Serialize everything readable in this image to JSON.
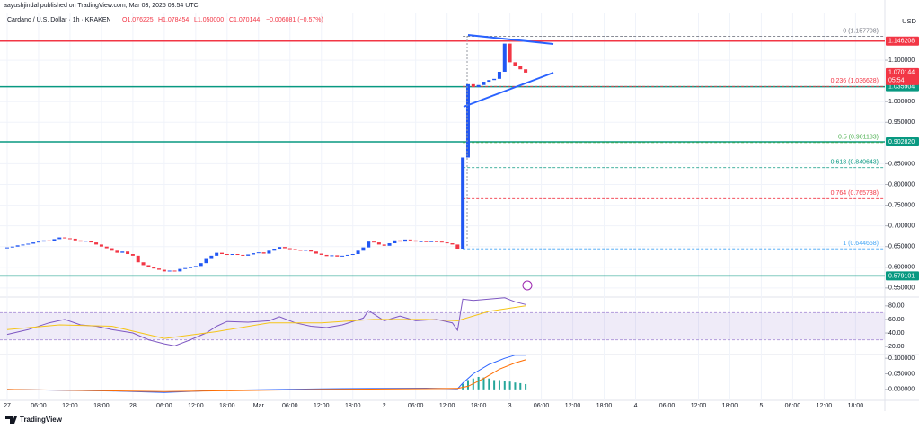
{
  "header": {
    "published": "aayushjindal published on TradingView.com, Mar 03, 2025 03:54 UTC",
    "symbol": "Cardano / U.S. Dollar · 1h · KRAKEN",
    "ohlc": [
      "O1.076225",
      "H1.078454",
      "L1.050000",
      "C1.070144",
      "−0.006081 (−0.57%)"
    ],
    "currency": "USD",
    "brand": "TradingView"
  },
  "chart_data": [
    {
      "type": "candlestick",
      "up_color": "#2157f3",
      "down_color": "#f23645",
      "x": [
        0,
        1,
        2,
        3,
        4,
        5,
        6,
        7,
        8,
        9,
        10,
        11,
        12,
        13,
        14,
        15,
        16,
        17,
        18,
        19,
        20,
        21,
        22,
        23,
        24,
        25,
        26,
        27,
        28,
        29,
        30,
        31,
        32,
        33,
        34,
        35,
        36,
        37,
        38,
        39,
        40,
        41,
        42,
        43,
        44,
        45,
        46,
        47,
        48,
        49,
        50,
        51,
        52,
        53,
        54,
        55,
        56,
        57,
        58,
        59,
        60,
        61,
        62,
        63,
        64,
        65,
        66,
        67,
        68,
        69,
        70,
        71,
        72,
        73,
        74,
        75,
        76,
        77,
        78,
        79,
        80,
        81,
        82,
        83,
        84,
        85,
        86,
        87,
        88,
        89,
        90,
        91,
        92,
        93,
        94,
        95,
        96,
        97,
        98,
        99
      ],
      "close": [
        0.648,
        0.65,
        0.653,
        0.655,
        0.657,
        0.66,
        0.662,
        0.665,
        0.664,
        0.668,
        0.672,
        0.67,
        0.669,
        0.665,
        0.662,
        0.664,
        0.66,
        0.655,
        0.65,
        0.646,
        0.64,
        0.635,
        0.638,
        0.632,
        0.628,
        0.612,
        0.605,
        0.6,
        0.597,
        0.594,
        0.59,
        0.592,
        0.59,
        0.596,
        0.598,
        0.601,
        0.603,
        0.61,
        0.62,
        0.628,
        0.635,
        0.632,
        0.63,
        0.632,
        0.63,
        0.628,
        0.631,
        0.634,
        0.636,
        0.633,
        0.64,
        0.645,
        0.649,
        0.646,
        0.644,
        0.642,
        0.64,
        0.642,
        0.638,
        0.633,
        0.63,
        0.627,
        0.629,
        0.626,
        0.628,
        0.63,
        0.632,
        0.64,
        0.648,
        0.662,
        0.66,
        0.655,
        0.652,
        0.658,
        0.665,
        0.662,
        0.667,
        0.665,
        0.662,
        0.663,
        0.661,
        0.663,
        0.662,
        0.66,
        0.658,
        0.655,
        0.645,
        0.865,
        1.042,
        1.035,
        1.04,
        1.048,
        1.052,
        1.055,
        1.072,
        1.14,
        1.095,
        1.085,
        1.078,
        1.07
      ],
      "xlim": [
        -1.37,
        167.6
      ],
      "ylim": [
        0.528,
        1.202
      ],
      "xticks": [
        {
          "value": 0,
          "label": "27"
        },
        {
          "value": 6,
          "label": "06:00"
        },
        {
          "value": 12,
          "label": "12:00"
        },
        {
          "value": 18,
          "label": "18:00"
        },
        {
          "value": 24,
          "label": "28"
        },
        {
          "value": 30,
          "label": "06:00"
        },
        {
          "value": 36,
          "label": "12:00"
        },
        {
          "value": 42,
          "label": "18:00"
        },
        {
          "value": 48,
          "label": "Mar"
        },
        {
          "value": 54,
          "label": "06:00"
        },
        {
          "value": 60,
          "label": "12:00"
        },
        {
          "value": 66,
          "label": "18:00"
        },
        {
          "value": 72,
          "label": "2"
        },
        {
          "value": 78,
          "label": "06:00"
        },
        {
          "value": 84,
          "label": "12:00"
        },
        {
          "value": 90,
          "label": "18:00"
        },
        {
          "value": 96,
          "label": "3"
        },
        {
          "value": 102,
          "label": "06:00"
        },
        {
          "value": 108,
          "label": "12:00"
        },
        {
          "value": 114,
          "label": "18:00"
        },
        {
          "value": 120,
          "label": "4"
        },
        {
          "value": 126,
          "label": "06:00"
        },
        {
          "value": 132,
          "label": "12:00"
        },
        {
          "value": 138,
          "label": "18:00"
        },
        {
          "value": 144,
          "label": "5"
        },
        {
          "value": 150,
          "label": "06:00"
        },
        {
          "value": 156,
          "label": "12:00"
        },
        {
          "value": 162,
          "label": "18:00"
        }
      ],
      "yticks": [
        {
          "value": 0.55,
          "label": "0.550000"
        },
        {
          "value": 0.6,
          "label": "0.600000"
        },
        {
          "value": 0.65,
          "label": "0.650000"
        },
        {
          "value": 0.7,
          "label": "0.700000"
        },
        {
          "value": 0.75,
          "label": "0.750000"
        },
        {
          "value": 0.8,
          "label": "0.800000"
        },
        {
          "value": 0.85,
          "label": "0.850000"
        },
        {
          "value": 0.95,
          "label": "0.950000"
        },
        {
          "value": 1.0,
          "label": "1.000000"
        },
        {
          "value": 1.1,
          "label": "1.100000"
        }
      ],
      "grid": true,
      "levels": [
        {
          "value": 1.146208,
          "color": "#f23645"
        },
        {
          "value": 1.035904,
          "color": "#089981"
        },
        {
          "value": 0.90282,
          "label": "0.902820",
          "color": "#089981"
        },
        {
          "value": 0.579101,
          "color": "#089981"
        }
      ],
      "last_price": {
        "value": 1.070144,
        "color": "#f23645",
        "countdown": "05:54"
      },
      "fib_start": 87,
      "fib": [
        {
          "label": "0 (1.157708)",
          "value": 1.157708,
          "color": "#787b86"
        },
        {
          "label": "0.236 (1.036628)",
          "value": 1.036628,
          "color": "#f23645"
        },
        {
          "label": "0.5 (0.901183)",
          "value": 0.901183,
          "color": "#4caf50"
        },
        {
          "label": "0.618 (0.840643)",
          "value": 0.840643,
          "color": "#089981"
        },
        {
          "label": "0.764 (0.765738)",
          "value": 0.765738,
          "color": "#f23645"
        },
        {
          "label": "1 (0.644658)",
          "value": 0.644658,
          "color": "#42a5f5"
        }
      ]
    },
    {
      "type": "line",
      "ylim": [
        8.3,
        93
      ],
      "band": [
        30,
        70
      ],
      "yticks": [
        {
          "value": 80,
          "label": "80.00"
        },
        {
          "value": 60,
          "label": "60.00"
        },
        {
          "value": 40,
          "label": "40.00"
        },
        {
          "value": 20,
          "label": "20.00"
        }
      ],
      "series": [
        {
          "color": "#7e57c2",
          "x": [
            0,
            4,
            8,
            11,
            14,
            17,
            20,
            24,
            27,
            30,
            32,
            35,
            38,
            40,
            42,
            46,
            50,
            52,
            55,
            58,
            61,
            64,
            68,
            69,
            72,
            75,
            78,
            82,
            85,
            86,
            87,
            89,
            92,
            95,
            97,
            99
          ],
          "values": [
            38,
            45,
            55,
            60,
            52,
            50,
            45,
            40,
            30,
            24,
            21,
            30,
            40,
            50,
            57,
            56,
            58,
            64,
            55,
            50,
            48,
            52,
            62,
            73,
            58,
            65,
            58,
            60,
            55,
            44,
            90,
            88,
            90,
            92,
            86,
            82
          ]
        },
        {
          "color": "#f5c518",
          "x": [
            0,
            10,
            20,
            30,
            40,
            50,
            60,
            70,
            80,
            86,
            92,
            99
          ],
          "values": [
            45,
            52,
            50,
            32,
            42,
            55,
            55,
            60,
            60,
            58,
            72,
            80
          ]
        }
      ]
    },
    {
      "type": "line",
      "ylim": [
        -0.035,
        0.112
      ],
      "yticks": [
        {
          "value": 0.1,
          "label": "0.100000"
        },
        {
          "value": 0.05,
          "label": "0.050000"
        },
        {
          "value": 0,
          "label": "0.000000"
        }
      ],
      "histogram": {
        "color": "#26a69a",
        "x": [
          87,
          88,
          89,
          90,
          91,
          92,
          93,
          94,
          95,
          96,
          97,
          98,
          99
        ],
        "values": [
          0.018,
          0.03,
          0.035,
          0.04,
          0.038,
          0.035,
          0.03,
          0.03,
          0.028,
          0.025,
          0.022,
          0.02,
          0.017
        ]
      },
      "series": [
        {
          "color": "#2962ff",
          "x": [
            0,
            20,
            30,
            40,
            60,
            80,
            86,
            87,
            89,
            92,
            95,
            97,
            99
          ],
          "values": [
            0,
            -0.005,
            -0.01,
            -0.003,
            0.002,
            0.004,
            0.002,
            0.02,
            0.05,
            0.08,
            0.1,
            0.11,
            0.11
          ]
        },
        {
          "color": "#ff6d00",
          "x": [
            0,
            30,
            60,
            86,
            88,
            91,
            94,
            97,
            99
          ],
          "values": [
            0,
            -0.007,
            0,
            0.003,
            0.01,
            0.035,
            0.065,
            0.085,
            0.095
          ]
        }
      ]
    }
  ]
}
